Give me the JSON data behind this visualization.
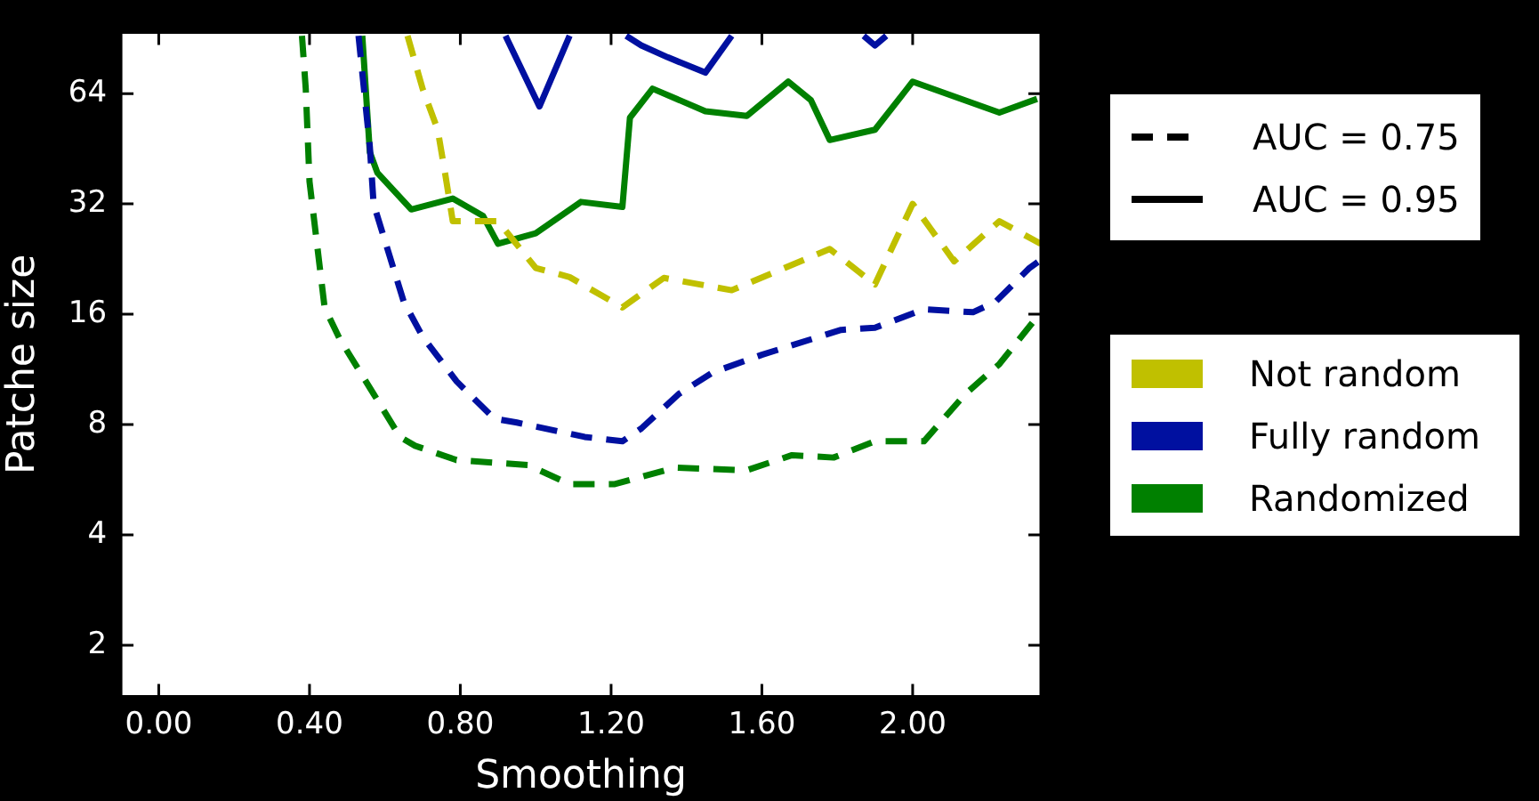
{
  "chart_data": {
    "type": "line",
    "xlabel": "Smoothing",
    "ylabel": "Patche size",
    "log": "y",
    "grid": false,
    "legend": "right",
    "marker": "none",
    "xlim": [
      -0.1,
      2.34
    ],
    "ylim": [
      1.45,
      94
    ],
    "xticks": [
      {
        "value": 0,
        "label": "0.00"
      },
      {
        "value": 0.4,
        "label": "0.40"
      },
      {
        "value": 0.8,
        "label": "0.80"
      },
      {
        "value": 1.2,
        "label": "1.20"
      },
      {
        "value": 1.6,
        "label": "1.60"
      },
      {
        "value": 2.0,
        "label": "2.00"
      }
    ],
    "yticks": [
      2,
      4,
      8,
      16,
      32,
      64
    ],
    "annotations": [
      "AUC = 0.75",
      "AUC = 0.95"
    ],
    "series": [
      {
        "name": "Not random",
        "color": "#c0c000",
        "line_style": "dashed",
        "x": [
          0.66,
          0.7,
          0.74,
          0.76,
          0.78,
          0.9,
          1.0,
          1.09,
          1.23,
          1.34,
          1.52,
          1.78,
          1.9,
          2.0,
          2.11,
          2.23,
          2.34
        ],
        "values": [
          92,
          66,
          51,
          38.6,
          28.7,
          28.7,
          21.4,
          20.2,
          16.7,
          20.1,
          18.6,
          24.1,
          19.3,
          32,
          22.3,
          28.7,
          24.9
        ]
      },
      {
        "name": "Fully random",
        "color": "#0010a0",
        "line_style": "dashed",
        "x": [
          0.53,
          0.56,
          0.57,
          0.65,
          0.7,
          0.79,
          0.89,
          0.95,
          1.13,
          1.23,
          1.28,
          1.38,
          1.47,
          1.6,
          1.81,
          1.9,
          2.03,
          2.16,
          2.22,
          2.31,
          2.34
        ],
        "values": [
          92,
          45.8,
          32,
          17.3,
          13.9,
          10.5,
          8.3,
          8.1,
          7.4,
          7.2,
          7.8,
          9.7,
          11.1,
          12.4,
          14.5,
          14.7,
          16.5,
          16.2,
          17.3,
          21.4,
          22.5
        ]
      },
      {
        "name": "Randomized",
        "color": "#008000",
        "line_style": "dashed",
        "x": [
          0.38,
          0.39,
          0.4,
          0.44,
          0.48,
          0.57,
          0.64,
          0.68,
          0.79,
          0.98,
          1.09,
          1.21,
          1.37,
          1.56,
          1.68,
          1.79,
          1.9,
          2.03,
          2.14,
          2.23,
          2.34
        ],
        "values": [
          92,
          66,
          36.8,
          16.7,
          13.7,
          9.7,
          7.4,
          7.0,
          6.4,
          6.2,
          5.5,
          5.5,
          6.1,
          6.0,
          6.6,
          6.5,
          7.2,
          7.2,
          9.7,
          11.7,
          16.2
        ]
      },
      {
        "color": "#0010a0",
        "line_style": "solid",
        "x": [
          0.92,
          1.01,
          1.09,
          1.16,
          1.24,
          1.28,
          1.35,
          1.45,
          1.52,
          1.7,
          1.87,
          1.9,
          1.93
        ],
        "values": [
          92,
          59,
          92,
          null,
          92,
          86.6,
          80.4,
          73,
          92,
          null,
          92,
          86.6,
          92
        ]
      },
      {
        "color": "#008000",
        "line_style": "solid",
        "x": [
          0.54,
          0.56,
          0.58,
          0.67,
          0.78,
          0.86,
          0.9,
          1.0,
          1.12,
          1.23,
          1.25,
          1.31,
          1.45,
          1.56,
          1.67,
          1.73,
          1.78,
          1.9,
          2.0,
          2.23,
          2.33
        ],
        "values": [
          92,
          44.3,
          38.9,
          30.9,
          33.1,
          29.7,
          24.9,
          26.6,
          32.4,
          31.4,
          55,
          66,
          57.3,
          55.6,
          69,
          61.4,
          47.8,
          51,
          69,
          56.8,
          61.9
        ]
      }
    ]
  }
}
